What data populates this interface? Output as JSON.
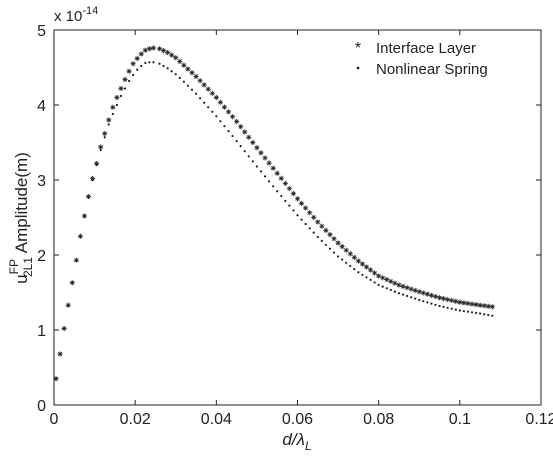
{
  "chart_data": {
    "type": "scatter",
    "multiplier_label": "x 10",
    "multiplier_exponent": "-14",
    "xlabel_main": "d/",
    "xlabel_greek": "λ",
    "xlabel_sub": "L",
    "ylabel_prefix": "u",
    "ylabel_sup": "FP",
    "ylabel_sub": "2L1",
    "ylabel_suffix": " Amplitude(m)",
    "xlim": [
      0,
      0.12
    ],
    "ylim": [
      0,
      5
    ],
    "xticks": [
      0,
      0.02,
      0.04,
      0.06,
      0.08,
      0.1,
      0.12
    ],
    "xtick_labels": [
      "0",
      "0.02",
      "0.04",
      "0.06",
      "0.08",
      "0.1",
      "0.12"
    ],
    "yticks": [
      0,
      1,
      2,
      3,
      4,
      5
    ],
    "ytick_labels": [
      "0",
      "1",
      "2",
      "3",
      "4",
      "5"
    ],
    "legend_position": "top-right",
    "grid": false,
    "series": [
      {
        "name": "Interface Layer",
        "marker": "asterisk",
        "color": "#222222",
        "points": [
          [
            0.0005,
            0.35
          ],
          [
            0.0015,
            0.68
          ],
          [
            0.0025,
            1.02
          ],
          [
            0.0035,
            1.33
          ],
          [
            0.0045,
            1.63
          ],
          [
            0.0055,
            1.93
          ],
          [
            0.0065,
            2.25
          ],
          [
            0.0075,
            2.52
          ],
          [
            0.0085,
            2.78
          ],
          [
            0.0095,
            3.02
          ],
          [
            0.0105,
            3.22
          ],
          [
            0.0115,
            3.44
          ],
          [
            0.0125,
            3.62
          ],
          [
            0.0135,
            3.8
          ],
          [
            0.0145,
            3.97
          ],
          [
            0.0155,
            4.1
          ],
          [
            0.0165,
            4.22
          ],
          [
            0.0175,
            4.34
          ],
          [
            0.0185,
            4.45
          ],
          [
            0.0195,
            4.55
          ],
          [
            0.0205,
            4.62
          ],
          [
            0.0215,
            4.68
          ],
          [
            0.0225,
            4.73
          ],
          [
            0.0235,
            4.75
          ],
          [
            0.0245,
            4.76
          ],
          [
            0.026,
            4.75
          ],
          [
            0.028,
            4.7
          ],
          [
            0.03,
            4.63
          ],
          [
            0.032,
            4.53
          ],
          [
            0.035,
            4.38
          ],
          [
            0.04,
            4.1
          ],
          [
            0.045,
            3.78
          ],
          [
            0.05,
            3.43
          ],
          [
            0.055,
            3.09
          ],
          [
            0.06,
            2.75
          ],
          [
            0.065,
            2.44
          ],
          [
            0.07,
            2.16
          ],
          [
            0.075,
            1.92
          ],
          [
            0.08,
            1.72
          ],
          [
            0.085,
            1.6
          ],
          [
            0.09,
            1.51
          ],
          [
            0.095,
            1.43
          ],
          [
            0.1,
            1.37
          ],
          [
            0.105,
            1.33
          ],
          [
            0.108,
            1.31
          ]
        ]
      },
      {
        "name": "Nonlinear Spring",
        "marker": "point",
        "color": "#222222",
        "points": [
          [
            0.0005,
            0.35
          ],
          [
            0.0015,
            0.68
          ],
          [
            0.0025,
            1.02
          ],
          [
            0.0035,
            1.33
          ],
          [
            0.0045,
            1.63
          ],
          [
            0.0055,
            1.93
          ],
          [
            0.0065,
            2.25
          ],
          [
            0.0075,
            2.52
          ],
          [
            0.0085,
            2.77
          ],
          [
            0.0095,
            3.0
          ],
          [
            0.0105,
            3.2
          ],
          [
            0.0115,
            3.4
          ],
          [
            0.0125,
            3.57
          ],
          [
            0.0135,
            3.74
          ],
          [
            0.0145,
            3.88
          ],
          [
            0.0155,
            4.0
          ],
          [
            0.0165,
            4.12
          ],
          [
            0.0175,
            4.22
          ],
          [
            0.0185,
            4.32
          ],
          [
            0.0195,
            4.4
          ],
          [
            0.0205,
            4.47
          ],
          [
            0.0215,
            4.52
          ],
          [
            0.0225,
            4.56
          ],
          [
            0.0235,
            4.57
          ],
          [
            0.0245,
            4.57
          ],
          [
            0.026,
            4.55
          ],
          [
            0.028,
            4.49
          ],
          [
            0.03,
            4.41
          ],
          [
            0.032,
            4.31
          ],
          [
            0.035,
            4.15
          ],
          [
            0.04,
            3.85
          ],
          [
            0.045,
            3.52
          ],
          [
            0.05,
            3.18
          ],
          [
            0.055,
            2.85
          ],
          [
            0.06,
            2.53
          ],
          [
            0.065,
            2.24
          ],
          [
            0.07,
            1.98
          ],
          [
            0.075,
            1.77
          ],
          [
            0.08,
            1.6
          ],
          [
            0.085,
            1.49
          ],
          [
            0.09,
            1.4
          ],
          [
            0.095,
            1.32
          ],
          [
            0.1,
            1.26
          ],
          [
            0.105,
            1.22
          ],
          [
            0.108,
            1.19
          ]
        ]
      }
    ]
  }
}
